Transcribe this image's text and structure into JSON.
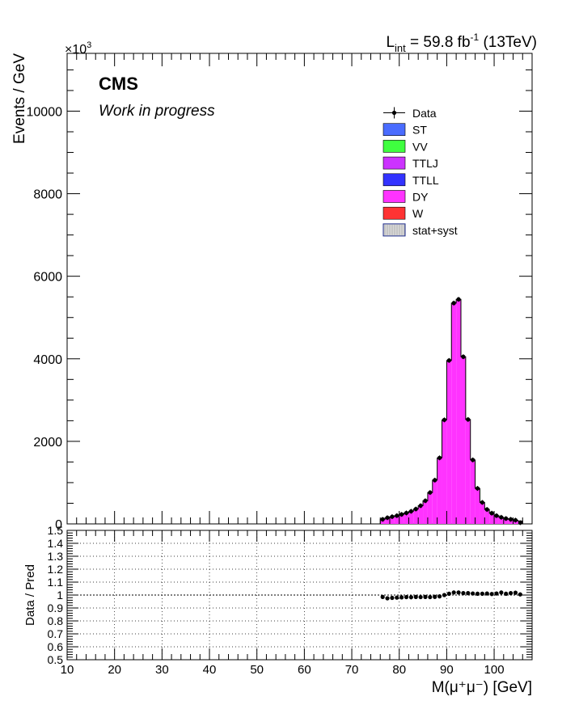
{
  "header": {
    "lumi_main": "L",
    "lumi_sub": "int",
    "lumi_value": " = 59.8 fb",
    "lumi_exp": "-1",
    "lumi_energy": " (13TeV)",
    "exponent_base": "×10",
    "exponent_power": "3",
    "cms": "CMS",
    "work": "Work in progress"
  },
  "colors": {
    "ST": "#4a6cff",
    "VV": "#3fff3f",
    "TTLJ": "#cc33ff",
    "TTLL": "#3333ff",
    "DY": "#ff33ff",
    "W": "#ff3333",
    "data": "#000000"
  },
  "legend": [
    {
      "key": "data",
      "label": "Data"
    },
    {
      "key": "ST",
      "label": "ST"
    },
    {
      "key": "VV",
      "label": "VV"
    },
    {
      "key": "TTLJ",
      "label": "TTLJ"
    },
    {
      "key": "TTLL",
      "label": "TTLL"
    },
    {
      "key": "DY",
      "label": "DY"
    },
    {
      "key": "W",
      "label": "W"
    },
    {
      "key": "syst",
      "label": "stat+syst"
    }
  ],
  "chart_data": [
    {
      "type": "bar",
      "panel": "main",
      "ylabel": "Events / GeV",
      "y_scale_note": "×10^3",
      "xlim": [
        10,
        108
      ],
      "ylim": [
        0,
        11400
      ],
      "yticks": [
        0,
        2000,
        4000,
        6000,
        8000,
        10000
      ],
      "yticklabels": [
        "0",
        "2000",
        "4000",
        "6000",
        "8000",
        "10000"
      ],
      "bin_edges": [
        76,
        77,
        78,
        79,
        80,
        81,
        82,
        83,
        84,
        85,
        86,
        87,
        88,
        89,
        90,
        91,
        92,
        93,
        94,
        95,
        96,
        97,
        98,
        99,
        100,
        101,
        102,
        103,
        104,
        105,
        106
      ],
      "series": [
        {
          "name": "DY",
          "values": [
            110,
            150,
            175,
            200,
            230,
            265,
            305,
            360,
            440,
            560,
            760,
            1060,
            1600,
            2520,
            3960,
            5350,
            5440,
            4050,
            2530,
            1550,
            860,
            520,
            350,
            260,
            200,
            160,
            130,
            110,
            90,
            70
          ]
        }
      ],
      "data_points": [
        110,
        150,
        175,
        200,
        230,
        265,
        305,
        360,
        440,
        560,
        760,
        1060,
        1600,
        2520,
        3960,
        5350,
        5440,
        4050,
        2530,
        1550,
        860,
        520,
        350,
        260,
        200,
        160,
        130,
        110,
        90,
        30
      ]
    },
    {
      "type": "scatter",
      "panel": "ratio",
      "ylabel": "Data / Pred",
      "xlabel": "M(μ⁺μ⁻) [GeV]",
      "xlim": [
        10,
        108
      ],
      "ylim": [
        0.5,
        1.5
      ],
      "xticks": [
        10,
        20,
        30,
        40,
        50,
        60,
        70,
        80,
        90,
        100
      ],
      "xticklabels": [
        "10",
        "20",
        "30",
        "40",
        "50",
        "60",
        "70",
        "80",
        "90",
        "100"
      ],
      "yticks": [
        0.5,
        0.6,
        0.7,
        0.8,
        0.9,
        1,
        1.1,
        1.2,
        1.3,
        1.4,
        1.5
      ],
      "yticklabels": [
        "0.5",
        "0.6",
        "0.7",
        "0.8",
        "0.9",
        "1",
        "1.1",
        "1.2",
        "1.3",
        "1.4",
        "1.5"
      ],
      "grid": true,
      "x": [
        76.5,
        77.5,
        78.5,
        79.5,
        80.5,
        81.5,
        82.5,
        83.5,
        84.5,
        85.5,
        86.5,
        87.5,
        88.5,
        89.5,
        90.5,
        91.5,
        92.5,
        93.5,
        94.5,
        95.5,
        96.5,
        97.5,
        98.5,
        99.5,
        100.5,
        101.5,
        102.5,
        103.5,
        104.5,
        105.5
      ],
      "y": [
        0.985,
        0.975,
        0.978,
        0.98,
        0.982,
        0.984,
        0.983,
        0.985,
        0.984,
        0.985,
        0.984,
        0.986,
        0.99,
        1.0,
        1.01,
        1.02,
        1.02,
        1.015,
        1.015,
        1.012,
        1.01,
        1.01,
        1.012,
        1.008,
        1.012,
        1.02,
        1.01,
        1.015,
        1.018,
        1.005
      ]
    }
  ]
}
